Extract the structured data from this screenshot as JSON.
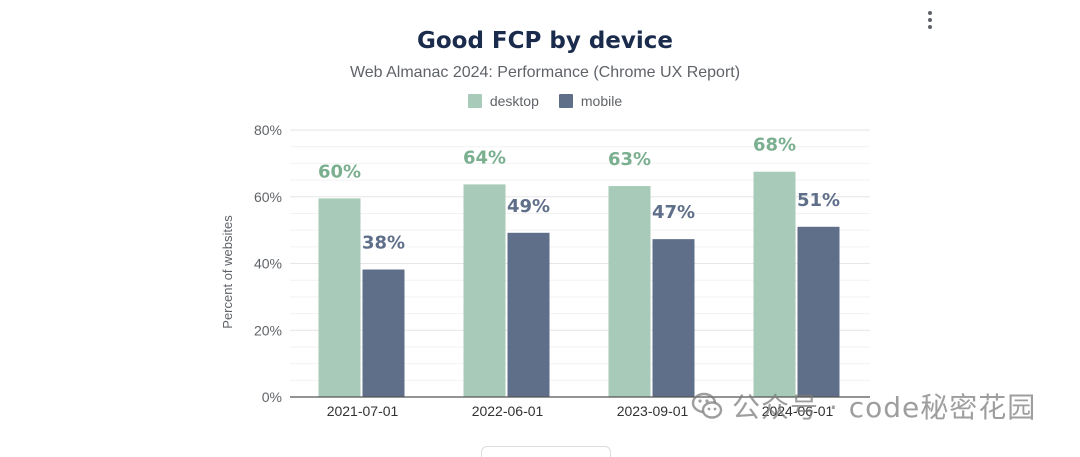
{
  "menu": {
    "icon": "more-vert-icon"
  },
  "watermark": {
    "text": "公众号 · code秘密花园",
    "icon": "wechat-icon"
  },
  "colors": {
    "desktop": "#a8cab8",
    "mobile": "#5f6f8a",
    "desktop_label": "#7aaf8f",
    "mobile_label": "#5f6f8a"
  },
  "chart_data": {
    "type": "bar",
    "title": "Good FCP by device",
    "subtitle": "Web Almanac 2024: Performance (Chrome UX Report)",
    "xlabel": "",
    "ylabel": "Percent of websites",
    "ylim": [
      0,
      80
    ],
    "yticks": [
      "0%",
      "20%",
      "40%",
      "60%",
      "80%"
    ],
    "ytick_values": [
      0,
      20,
      40,
      60,
      80
    ],
    "grid": true,
    "legend_position": "top",
    "categories": [
      "2021-07-01",
      "2022-06-01",
      "2023-09-01",
      "2024-06-01"
    ],
    "series": [
      {
        "name": "desktop",
        "values": [
          59.5,
          63.7,
          63.2,
          67.5
        ],
        "labels": [
          "60%",
          "64%",
          "63%",
          "68%"
        ]
      },
      {
        "name": "mobile",
        "values": [
          38.2,
          49.2,
          47.3,
          51.0
        ],
        "labels": [
          "38%",
          "49%",
          "47%",
          "51%"
        ]
      }
    ]
  }
}
